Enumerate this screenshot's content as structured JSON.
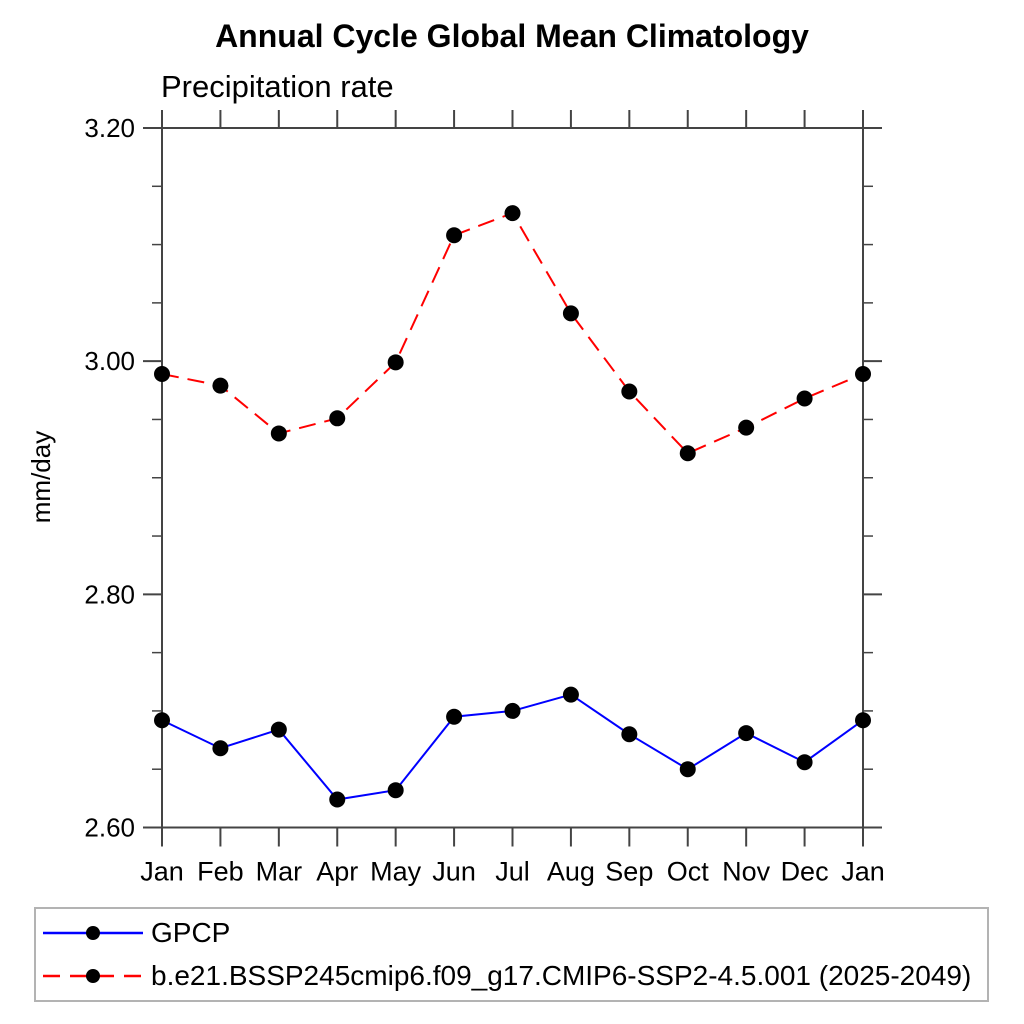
{
  "chart_data": {
    "type": "line",
    "title": "Annual Cycle Global Mean Climatology",
    "subtitle": "Precipitation rate",
    "ylabel": "mm/day",
    "xlabel": "",
    "categories": [
      "Jan",
      "Feb",
      "Mar",
      "Apr",
      "May",
      "Jun",
      "Jul",
      "Aug",
      "Sep",
      "Oct",
      "Nov",
      "Dec",
      "Jan"
    ],
    "ylim": [
      2.6,
      3.2
    ],
    "ytick_major": [
      3.2,
      3.0,
      2.8,
      2.6
    ],
    "ytick_labels": [
      "3.20",
      "3.00",
      "2.80",
      "2.60"
    ],
    "ytick_minor_step": 0.05,
    "grid": false,
    "legend_position": "bottom-left-box",
    "axis_color": "#444444",
    "marker_color": "#000000",
    "background": "#ffffff",
    "legend_border_color": "#b3b3b3",
    "series": [
      {
        "name": "GPCP",
        "color": "#0000ff",
        "style": "solid",
        "marker": "black-dot",
        "values": [
          2.692,
          2.668,
          2.684,
          2.624,
          2.632,
          2.695,
          2.7,
          2.714,
          2.68,
          2.65,
          2.681,
          2.656,
          2.692
        ]
      },
      {
        "name": "b.e21.BSSP245cmip6.f09_g17.CMIP6-SSP2-4.5.001 (2025-2049)",
        "color": "#ff0000",
        "style": "dashed",
        "marker": "black-dot",
        "values": [
          2.989,
          2.979,
          2.938,
          2.951,
          2.999,
          3.108,
          3.127,
          3.041,
          2.974,
          2.921,
          2.943,
          2.968,
          2.989
        ]
      }
    ]
  }
}
